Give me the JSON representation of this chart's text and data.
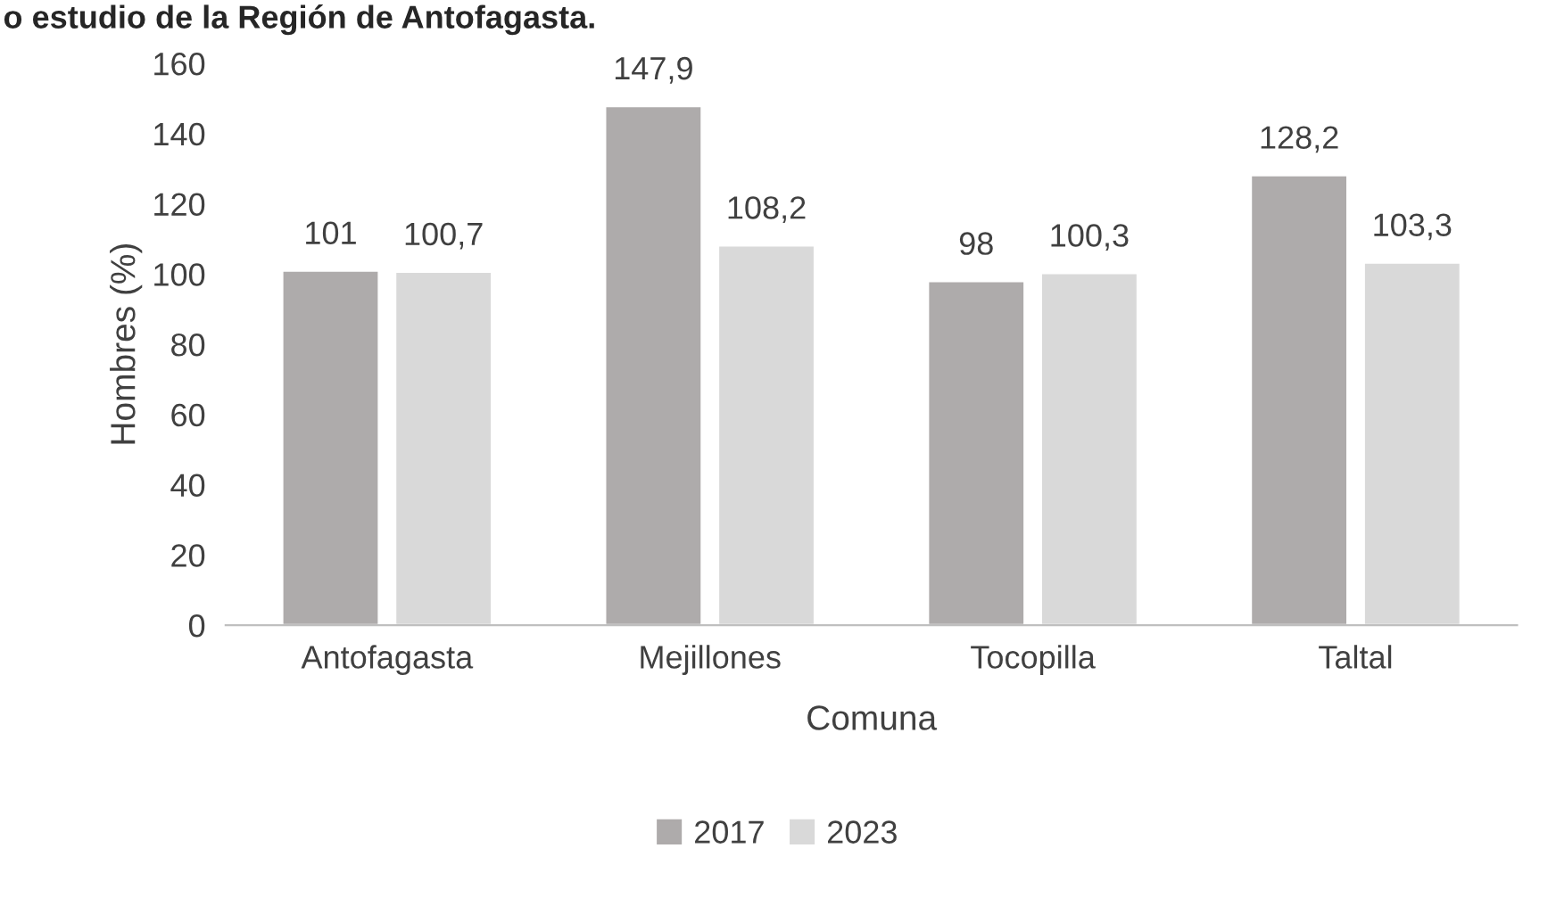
{
  "chart_data": {
    "type": "bar",
    "title": "o estudio de la Región de Antofagasta.",
    "xlabel": "Comuna",
    "ylabel": "Hombres (%)",
    "categories": [
      "Antofagasta",
      "Mejillones",
      "Tocopilla",
      "Taltal"
    ],
    "series": [
      {
        "name": "2017",
        "color": "#aeabab",
        "values": [
          101,
          147.9,
          98,
          128.2
        ],
        "value_labels": [
          "101",
          "147,9",
          "98",
          "128,2"
        ]
      },
      {
        "name": "2023",
        "color": "#d9d9d9",
        "values": [
          100.7,
          108.2,
          100.3,
          103.3
        ],
        "value_labels": [
          "100,7",
          "108,2",
          "100,3",
          "103,3"
        ]
      }
    ],
    "ylim": [
      0,
      160
    ],
    "yticks": [
      0,
      20,
      40,
      60,
      80,
      100,
      120,
      140,
      160
    ],
    "grid": false,
    "legend": "bottom"
  }
}
